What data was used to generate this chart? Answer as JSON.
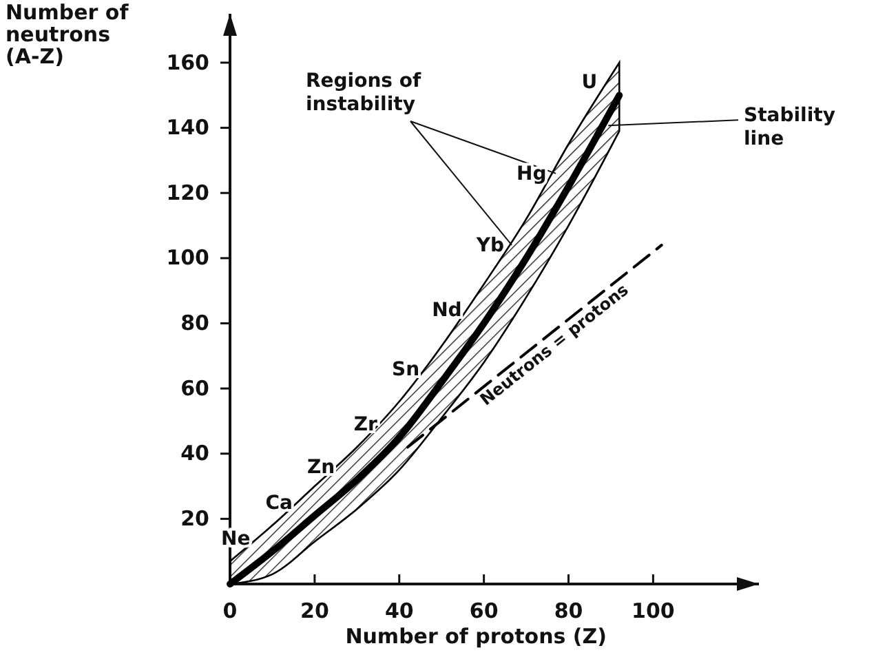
{
  "chart_data": {
    "type": "line",
    "xlabel": "Number of protons (Z)",
    "ylabel": "Number of neutrons (A-Z)",
    "xlim": [
      0,
      125
    ],
    "ylim": [
      0,
      175
    ],
    "xticks": [
      0,
      20,
      40,
      60,
      80,
      100
    ],
    "yticks": [
      20,
      40,
      60,
      80,
      100,
      120,
      140,
      160
    ],
    "series": [
      {
        "name": "Stability line",
        "color": "#000000",
        "x": [
          0,
          10,
          20,
          30,
          40,
          50,
          60,
          70,
          80,
          92
        ],
        "values": [
          0,
          10,
          21,
          32,
          45,
          62,
          80,
          100,
          122,
          150
        ],
        "lower": [
          0,
          3,
          13,
          23,
          35,
          51,
          68,
          88,
          110,
          139
        ],
        "upper": [
          7,
          18,
          30,
          42,
          56,
          73,
          92,
          112,
          135,
          160
        ],
        "line_style": "solid"
      },
      {
        "name": "Neutrons = protons",
        "color": "#000000",
        "x": [
          42,
          102
        ],
        "values": [
          42,
          104
        ],
        "line_style": "dashed"
      }
    ],
    "annotations": [
      {
        "text": "Regions of instability",
        "x": 77,
        "y": 126
      },
      {
        "text": "Ne",
        "x": 10,
        "y": 10
      },
      {
        "text": "Ca",
        "x": 20,
        "y": 21
      },
      {
        "text": "Zn",
        "x": 30,
        "y": 32
      },
      {
        "text": "Zr",
        "x": 40,
        "y": 45
      },
      {
        "text": "Sn",
        "x": 50,
        "y": 62
      },
      {
        "text": "Nd",
        "x": 60,
        "y": 80
      },
      {
        "text": "Yb",
        "x": 70,
        "y": 100
      },
      {
        "text": "Hg",
        "x": 80,
        "y": 122
      },
      {
        "text": "U",
        "x": 92,
        "y": 150
      }
    ],
    "legend": false,
    "grid": false,
    "marker": "none"
  }
}
